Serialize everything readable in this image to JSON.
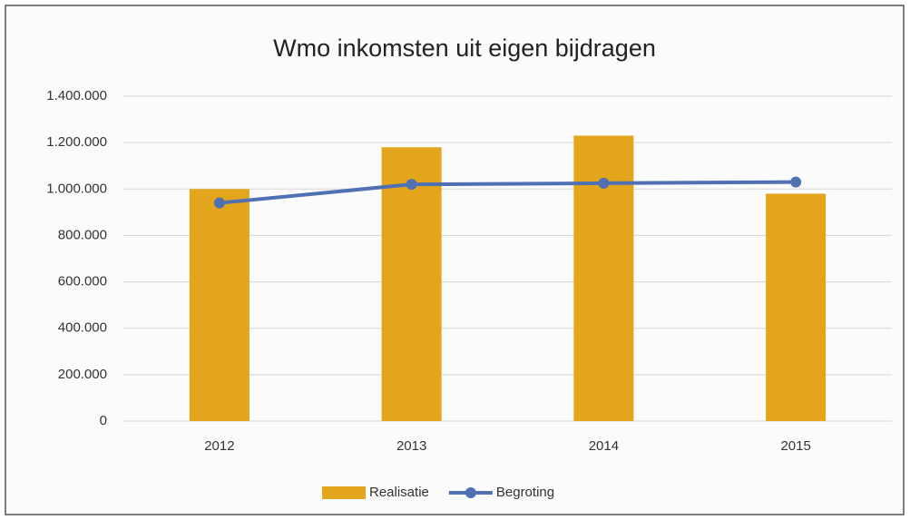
{
  "chart_data": {
    "type": "combo",
    "title": "Wmo inkomsten uit eigen bijdragen",
    "categories": [
      "2012",
      "2013",
      "2014",
      "2015"
    ],
    "series": [
      {
        "name": "Realisatie",
        "type": "bar",
        "color": "#e3a51b",
        "values": [
          1000000,
          1180000,
          1230000,
          980000
        ]
      },
      {
        "name": "Begroting",
        "type": "line",
        "color": "#5070b4",
        "values": [
          940000,
          1020000,
          1025000,
          1030000
        ]
      }
    ],
    "ylim": [
      0,
      1400000
    ],
    "yticks": [
      0,
      {
        "value": 200000,
        "label": "200.000"
      },
      {
        "value": 400000,
        "label": "400.000"
      },
      {
        "value": 600000,
        "label": "600.000"
      },
      {
        "value": 800000,
        "label": "800.000"
      },
      {
        "value": 1000000,
        "label": "1.000.000"
      },
      {
        "value": 1200000,
        "label": "1.200.000"
      },
      {
        "value": 1400000,
        "label": "1.400.000"
      }
    ],
    "grid": true,
    "legend": "bottom"
  }
}
